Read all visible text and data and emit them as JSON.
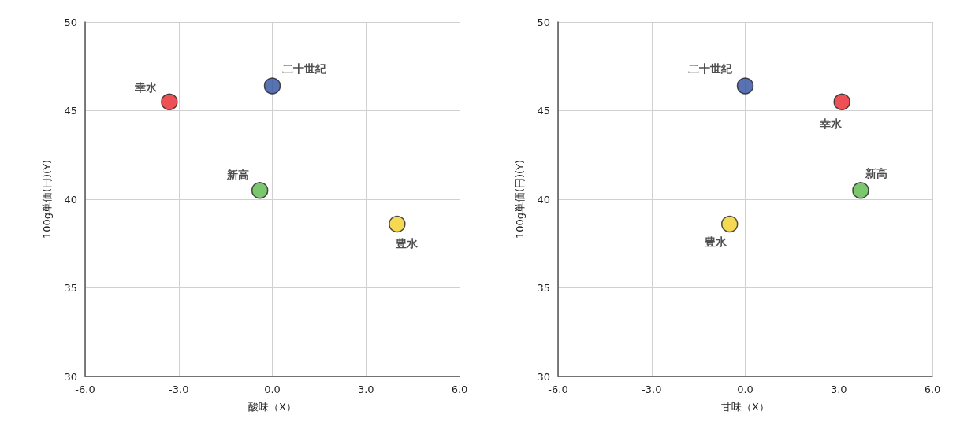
{
  "chart_data": [
    {
      "type": "scatter",
      "xlabel": "酸味（X）",
      "ylabel": "100g単価(円)(Y)",
      "x": [
        -3.3,
        0.0,
        -0.4,
        4.0
      ],
      "values": [
        45.5,
        46.4,
        40.5,
        38.6
      ],
      "colors": [
        "#e8262a",
        "#2f4fa0",
        "#5bb84a",
        "#f2d028"
      ],
      "marker": "circle",
      "grid": true,
      "xlim": [
        -6,
        6
      ],
      "xticks": [
        {
          "value": -6,
          "label": "-6.0"
        },
        {
          "value": -3,
          "label": "-3.0"
        },
        {
          "value": 0,
          "label": "0.0"
        },
        {
          "value": 3,
          "label": "3.0"
        },
        {
          "value": 6,
          "label": "6.0"
        }
      ],
      "ylim": [
        30,
        50
      ],
      "yticks": [
        30,
        35,
        40,
        45,
        50
      ],
      "annotations": [
        {
          "text": "幸水",
          "x": -3.3,
          "y": 45.5
        },
        {
          "text": "二十世紀",
          "x": 0.0,
          "y": 46.4
        },
        {
          "text": "新高",
          "x": -0.4,
          "y": 40.5
        },
        {
          "text": "豊水",
          "x": 4.0,
          "y": 38.6
        }
      ]
    },
    {
      "type": "scatter",
      "xlabel": "甘味（X）",
      "ylabel": "100g単価(円)(Y)",
      "x": [
        3.1,
        0.0,
        3.7,
        -0.5
      ],
      "values": [
        45.5,
        46.4,
        40.5,
        38.6
      ],
      "colors": [
        "#e8262a",
        "#2f4fa0",
        "#5bb84a",
        "#f2d028"
      ],
      "marker": "circle",
      "grid": true,
      "xlim": [
        -6,
        6
      ],
      "xticks": [
        {
          "value": -6,
          "label": "-6.0"
        },
        {
          "value": -3,
          "label": "-3.0"
        },
        {
          "value": 0,
          "label": "0.0"
        },
        {
          "value": 3,
          "label": "3.0"
        },
        {
          "value": 6,
          "label": "6.0"
        }
      ],
      "ylim": [
        30,
        50
      ],
      "yticks": [
        30,
        35,
        40,
        45,
        50
      ],
      "annotations": [
        {
          "text": "幸水",
          "x": 3.1,
          "y": 45.5
        },
        {
          "text": "二十世紀",
          "x": 0.0,
          "y": 46.4
        },
        {
          "text": "新高",
          "x": 3.7,
          "y": 40.5
        },
        {
          "text": "豊水",
          "x": -0.5,
          "y": 38.6
        }
      ]
    }
  ]
}
